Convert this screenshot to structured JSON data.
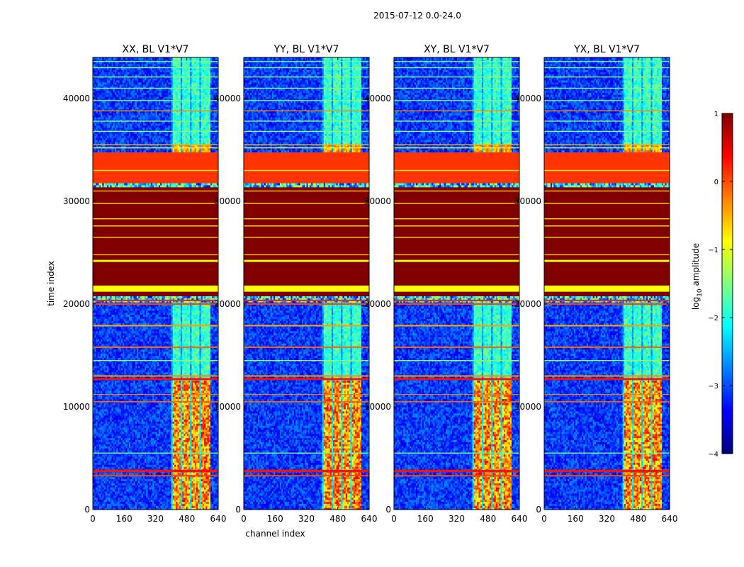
{
  "chart_data": [
    {
      "type": "heatmap",
      "title": "XX, BL V1*V7",
      "xlabel": "",
      "ylabel": "time index",
      "xlim": [
        0,
        640
      ],
      "ylim": [
        0,
        44000
      ],
      "xticks": [
        "0",
        "160",
        "320",
        "480",
        "640"
      ],
      "yticks": [
        "0",
        "10000",
        "20000",
        "30000",
        "40000"
      ]
    },
    {
      "type": "heatmap",
      "title": "YY, BL V1*V7",
      "xlabel": "channel index",
      "ylabel": "",
      "xlim": [
        0,
        640
      ],
      "ylim": [
        0,
        44000
      ],
      "xticks": [
        "0",
        "160",
        "320",
        "480",
        "640"
      ],
      "yticks": [
        "0",
        "10000",
        "20000",
        "30000",
        "40000"
      ]
    },
    {
      "type": "heatmap",
      "title": "XY, BL V1*V7",
      "xlabel": "",
      "ylabel": "",
      "xlim": [
        0,
        640
      ],
      "ylim": [
        0,
        44000
      ],
      "xticks": [
        "0",
        "160",
        "320",
        "480",
        "640"
      ],
      "yticks": [
        "0",
        "10000",
        "20000",
        "30000",
        "40000"
      ]
    },
    {
      "type": "heatmap",
      "title": "YX, BL V1*V7",
      "xlabel": "",
      "ylabel": "",
      "xlim": [
        0,
        640
      ],
      "ylim": [
        0,
        44000
      ],
      "xticks": [
        "0",
        "160",
        "320",
        "480",
        "640"
      ],
      "yticks": [
        "0",
        "10000",
        "20000",
        "30000",
        "40000"
      ]
    }
  ],
  "figure": {
    "suptitle": "2015-07-12 0.0-24.0"
  },
  "colorbar": {
    "label_prefix": "log",
    "label_sub": "10",
    "label_suffix": " amplitude",
    "range": [
      -4,
      1
    ],
    "ticks": [
      {
        "value": 1,
        "label": "1"
      },
      {
        "value": 0,
        "label": "0"
      },
      {
        "value": -1,
        "label": "−1"
      },
      {
        "value": -2,
        "label": "−2"
      },
      {
        "value": -3,
        "label": "−3"
      },
      {
        "value": -4,
        "label": "−4"
      }
    ]
  },
  "structure": {
    "zones": [
      {
        "from": 0,
        "to": 20200,
        "kind": "noise"
      },
      {
        "from": 20200,
        "to": 20900,
        "kind": "mixed"
      },
      {
        "from": 20900,
        "to": 31500,
        "kind": "saturated",
        "level": 1.0
      },
      {
        "from": 31500,
        "to": 31900,
        "kind": "mixed"
      },
      {
        "from": 31900,
        "to": 34800,
        "kind": "flat",
        "level": 0.12
      },
      {
        "from": 34800,
        "to": 44000,
        "kind": "noise"
      }
    ],
    "signal_region": [
      {
        "from": 0,
        "to": 12600,
        "strength": "strong"
      },
      {
        "from": 12600,
        "to": 20200,
        "strength": "weak"
      },
      {
        "from": 34800,
        "to": 35700,
        "strength": "medium"
      },
      {
        "from": 35700,
        "to": 44000,
        "strength": "weak"
      }
    ],
    "signal_channels": [
      {
        "from": 405,
        "to": 448
      },
      {
        "from": 455,
        "to": 498
      },
      {
        "from": 505,
        "to": 548
      },
      {
        "from": 555,
        "to": 598
      }
    ],
    "horizontal_lines": [
      {
        "t": 3300,
        "level": 0.05,
        "width": 150
      },
      {
        "t": 3750,
        "level": 0.3,
        "width": 250
      },
      {
        "t": 5500,
        "level": -1.6,
        "width": 100
      },
      {
        "t": 10500,
        "level": -0.1,
        "width": 120
      },
      {
        "t": 11200,
        "level": -0.2,
        "width": 80
      },
      {
        "t": 12700,
        "level": 0.3,
        "width": 200
      },
      {
        "t": 13000,
        "level": -0.3,
        "width": 150
      },
      {
        "t": 14500,
        "level": -1.4,
        "width": 100
      },
      {
        "t": 15800,
        "level": -0.1,
        "width": 150
      },
      {
        "t": 17900,
        "level": -0.4,
        "width": 150
      },
      {
        "t": 20000,
        "level": 0.05,
        "width": 150
      },
      {
        "t": 20350,
        "level": 0.2,
        "width": 150
      },
      {
        "t": 21500,
        "level": -0.9,
        "width": 600
      },
      {
        "t": 24200,
        "level": -0.9,
        "width": 200
      },
      {
        "t": 24800,
        "level": -0.5,
        "width": 100
      },
      {
        "t": 26500,
        "level": -0.7,
        "width": 100
      },
      {
        "t": 27600,
        "level": -0.7,
        "width": 100
      },
      {
        "t": 28300,
        "level": -0.7,
        "width": 100
      },
      {
        "t": 29800,
        "level": -0.7,
        "width": 100
      },
      {
        "t": 31000,
        "level": -0.6,
        "width": 100
      },
      {
        "t": 33000,
        "level": -0.8,
        "width": 100
      },
      {
        "t": 35200,
        "level": -1.0,
        "width": 100
      },
      {
        "t": 35500,
        "level": -0.5,
        "width": 100
      },
      {
        "t": 36800,
        "level": -1.5,
        "width": 100
      },
      {
        "t": 37800,
        "level": -1.5,
        "width": 100
      },
      {
        "t": 38800,
        "level": -0.3,
        "width": 100
      },
      {
        "t": 39800,
        "level": -1.5,
        "width": 100
      },
      {
        "t": 41000,
        "level": -1.5,
        "width": 100
      },
      {
        "t": 42100,
        "level": -1.5,
        "width": 100
      },
      {
        "t": 43000,
        "level": -1.5,
        "width": 100
      },
      {
        "t": 43600,
        "level": -1.6,
        "width": 100
      }
    ]
  }
}
